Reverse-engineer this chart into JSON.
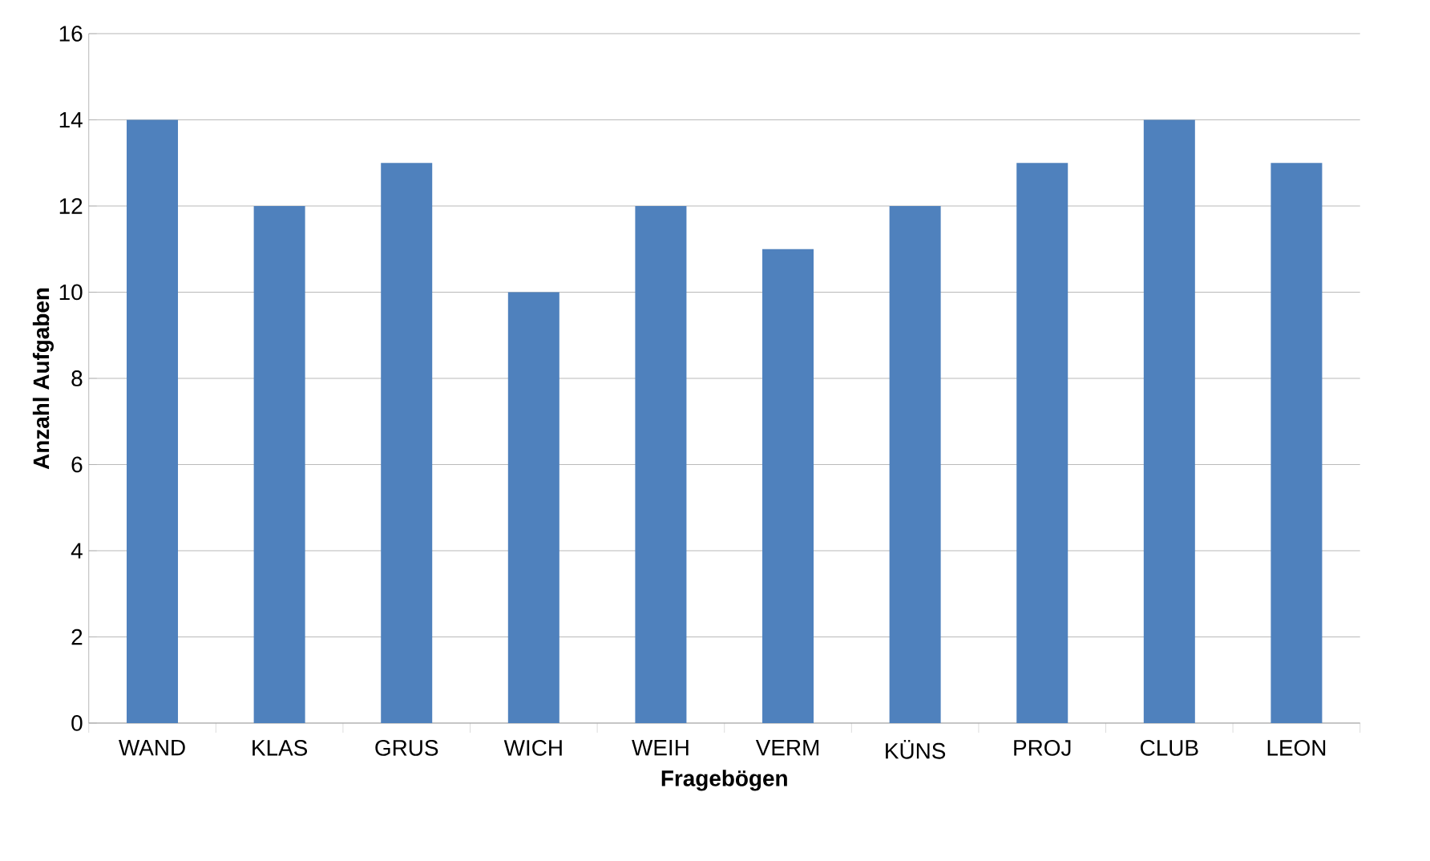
{
  "chart_data": {
    "type": "bar",
    "xlabel": "Fragebögen",
    "ylabel": "Anzahl Aufgaben",
    "categories": [
      "WAND",
      "KLAS",
      "GRUS",
      "WICH",
      "WEIH",
      "VERM",
      "KÜNS",
      "PROJ",
      "CLUB",
      "LEON"
    ],
    "values": [
      14,
      12,
      13,
      10,
      12,
      11,
      12,
      13,
      14,
      13
    ],
    "color": "#4f81bd",
    "ylim": [
      0,
      16
    ],
    "yticks": [
      0,
      2,
      4,
      6,
      8,
      10,
      12,
      14,
      16
    ],
    "grid": "y"
  }
}
